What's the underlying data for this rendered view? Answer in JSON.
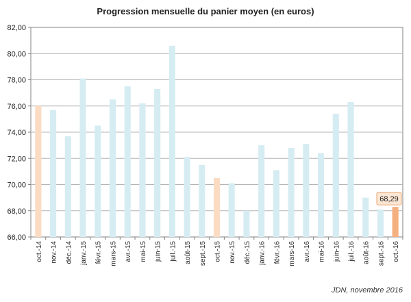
{
  "chart_data": {
    "type": "bar",
    "title": "Progression mensuelle du panier moyen (en euros)",
    "source": "JDN, novembre 2016",
    "categories": [
      "oct.-14",
      "nov.-14",
      "déc.-14",
      "janv.-15",
      "févr.-15",
      "mars-15",
      "avr.-15",
      "mai-15",
      "juin-15",
      "juil.-15",
      "août-15",
      "sept.-15",
      "oct.-15",
      "nov.-15",
      "déc.-15",
      "janv.-16",
      "févr.-16",
      "mars-16",
      "avr.-16",
      "mai-16",
      "juin-16",
      "juil.-16",
      "août-16",
      "sept.-16",
      "oct.-16"
    ],
    "values": [
      76.0,
      75.7,
      73.7,
      78.1,
      74.5,
      76.5,
      77.5,
      76.2,
      77.3,
      80.6,
      72.1,
      71.5,
      70.5,
      70.1,
      68.0,
      73.0,
      71.1,
      72.8,
      73.1,
      72.4,
      75.4,
      76.3,
      69.0,
      68.1,
      68.29
    ],
    "ylim": [
      66,
      82
    ],
    "yticks": [
      "66,00",
      "68,00",
      "70,00",
      "72,00",
      "74,00",
      "76,00",
      "78,00",
      "80,00",
      "82,00"
    ],
    "highlight_label": "68,29",
    "grid": true,
    "colors": {
      "default_bar": "#d6ecf3",
      "october_bar": "#fbdcc3",
      "last_bar": "#f5b080",
      "grid": "#b4b4b4",
      "axis": "#808080",
      "callout_fill": "#fce6d4",
      "callout_border": "#e8a46e"
    },
    "bar_color_roles": [
      "october",
      "default",
      "default",
      "default",
      "default",
      "default",
      "default",
      "default",
      "default",
      "default",
      "default",
      "default",
      "october",
      "default",
      "default",
      "default",
      "default",
      "default",
      "default",
      "default",
      "default",
      "default",
      "default",
      "default",
      "last"
    ]
  }
}
